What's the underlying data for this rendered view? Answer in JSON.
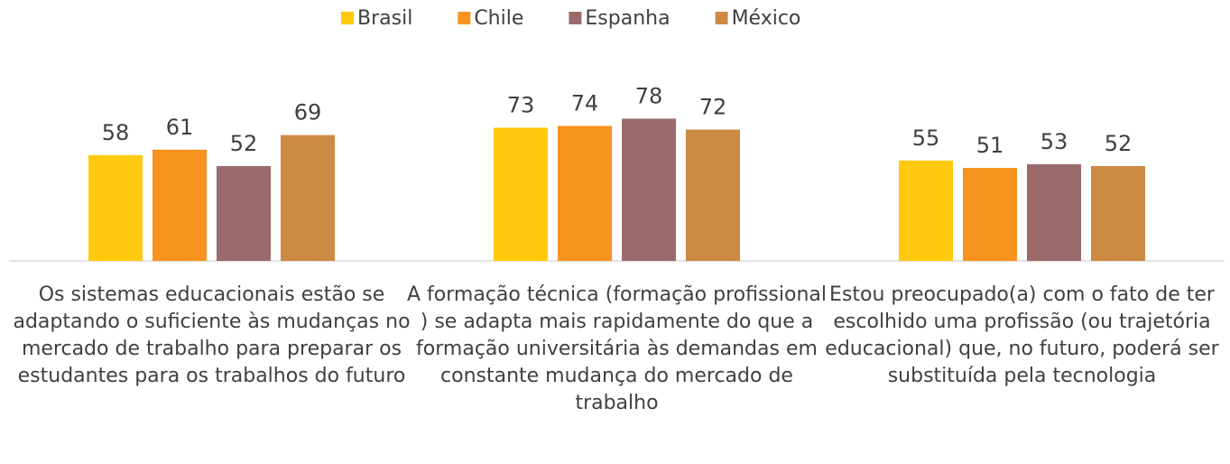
{
  "chart_data": {
    "type": "bar",
    "categories": [
      "Os sistemas educacionais estão se adaptando o suficiente às mudanças no mercado de trabalho para preparar os estudantes para os trabalhos do futuro",
      "A formação técnica (formação profissional ) se adapta mais rapidamente do que a formação universitária às demandas em constante mudança do mercado de trabalho",
      "Estou preocupado(a) com o fato de ter escolhido uma profissão (ou trajetória educacional) que, no futuro, poderá ser substituída pela tecnologia"
    ],
    "series": [
      {
        "name": "Brasil",
        "color": "#ffc90e",
        "values": [
          58,
          73,
          55
        ]
      },
      {
        "name": "Chile",
        "color": "#f7931e",
        "values": [
          61,
          74,
          51
        ]
      },
      {
        "name": "Espanha",
        "color": "#9b6a6a",
        "values": [
          52,
          78,
          53
        ]
      },
      {
        "name": "México",
        "color": "#cc8a42",
        "values": [
          69,
          72,
          52
        ]
      }
    ],
    "legend": "top"
  }
}
